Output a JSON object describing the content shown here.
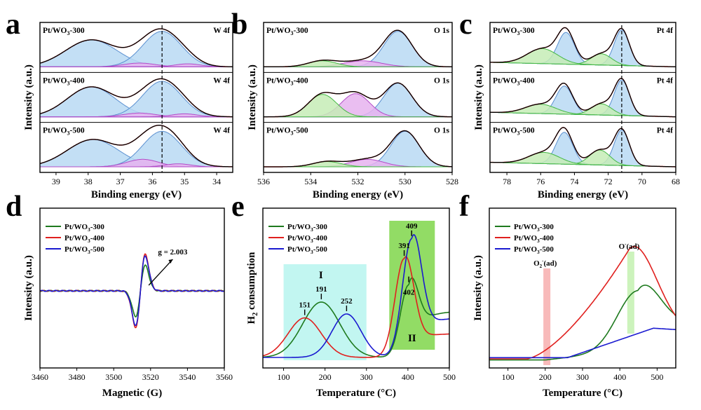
{
  "chart_data": [
    {
      "panel": "a",
      "type": "line",
      "title": "",
      "xlabel": "Binding energy (eV)",
      "ylabel": "Intensity (a.u.)",
      "xlim": [
        39.5,
        33.5
      ],
      "xticks": [
        39,
        38,
        37,
        36,
        35,
        34
      ],
      "dashed_line_at": 35.7,
      "series": [
        {
          "name": "Pt/WO3-300",
          "tag": "W 4f",
          "peaks": [
            [
              37.9,
              0.8,
              0.72
            ],
            [
              35.7,
              0.6,
              0.95
            ],
            [
              36.4,
              0.5,
              0.1
            ],
            [
              34.9,
              0.4,
              0.08
            ]
          ]
        },
        {
          "name": "Pt/WO3-400",
          "tag": "W 4f",
          "peaks": [
            [
              37.9,
              0.75,
              0.8
            ],
            [
              35.7,
              0.6,
              0.95
            ],
            [
              36.4,
              0.5,
              0.1
            ],
            [
              35.0,
              0.4,
              0.08
            ]
          ]
        },
        {
          "name": "Pt/WO3-500",
          "tag": "W 4f",
          "peaks": [
            [
              37.85,
              0.8,
              0.73
            ],
            [
              35.7,
              0.6,
              0.95
            ],
            [
              36.3,
              0.5,
              0.2
            ],
            [
              35.2,
              0.4,
              0.08
            ]
          ]
        }
      ]
    },
    {
      "panel": "b",
      "type": "line",
      "title": "",
      "xlabel": "Binding energy (eV)",
      "ylabel": "Intensity (a.u.)",
      "xlim": [
        536,
        528
      ],
      "xticks": [
        536,
        534,
        532,
        530,
        528
      ],
      "series": [
        {
          "name": "Pt/WO3-300",
          "tag": "O 1s",
          "peaks": [
            [
              530.3,
              0.6,
              0.95
            ],
            [
              531.8,
              0.8,
              0.16
            ],
            [
              533.5,
              0.6,
              0.16
            ]
          ]
        },
        {
          "name": "Pt/WO3-400",
          "tag": "O 1s",
          "peaks": [
            [
              530.3,
              0.6,
              0.9
            ],
            [
              532.1,
              0.6,
              0.62
            ],
            [
              533.5,
              0.6,
              0.6
            ]
          ]
        },
        {
          "name": "Pt/WO3-500",
          "tag": "O 1s",
          "peaks": [
            [
              530.0,
              0.6,
              0.95
            ],
            [
              531.6,
              0.7,
              0.2
            ],
            [
              533.3,
              0.6,
              0.14
            ]
          ]
        }
      ]
    },
    {
      "panel": "c",
      "type": "line",
      "title": "",
      "xlabel": "Binding energy (eV)",
      "ylabel": "Intensity (a.u.)",
      "xlim": [
        79,
        68
      ],
      "xticks": [
        78,
        76,
        74,
        72,
        70,
        68
      ],
      "dashed_line_at": 71.2,
      "series": [
        {
          "name": "Pt/WO3-300",
          "tag": "Pt 4f",
          "peaks": [
            [
              71.2,
              0.45,
              0.95
            ],
            [
              74.5,
              0.5,
              0.85
            ],
            [
              72.4,
              0.6,
              0.3
            ],
            [
              75.9,
              0.9,
              0.4
            ]
          ]
        },
        {
          "name": "Pt/WO3-400",
          "tag": "Pt 4f",
          "peaks": [
            [
              71.2,
              0.45,
              0.95
            ],
            [
              74.6,
              0.5,
              0.75
            ],
            [
              72.4,
              0.6,
              0.3
            ],
            [
              76.0,
              0.9,
              0.25
            ]
          ]
        },
        {
          "name": "Pt/WO3-500",
          "tag": "Pt 4f",
          "peaks": [
            [
              71.2,
              0.45,
              0.95
            ],
            [
              74.6,
              0.5,
              0.85
            ],
            [
              72.5,
              0.6,
              0.4
            ],
            [
              75.8,
              0.9,
              0.3
            ]
          ]
        }
      ]
    },
    {
      "panel": "d",
      "type": "line",
      "title": "",
      "xlabel": "Magnetic (G)",
      "ylabel": "Intensity (a.u.)",
      "xlim": [
        3460,
        3560
      ],
      "xticks": [
        3460,
        3480,
        3500,
        3520,
        3540,
        3560
      ],
      "annotation": "g = 2.003",
      "series": [
        {
          "name": "Pt/WO3-300",
          "color": "#1e7a1e",
          "amplitude": 0.7
        },
        {
          "name": "Pt/WO3-400",
          "color": "#e0201e",
          "amplitude": 1.0
        },
        {
          "name": "Pt/WO3-500",
          "color": "#1a1ad0",
          "amplitude": 0.95
        }
      ]
    },
    {
      "panel": "e",
      "type": "line",
      "title": "",
      "xlabel": "Temperature (°C)",
      "ylabel": "H2 consumption",
      "xlim": [
        50,
        500
      ],
      "xticks": [
        100,
        200,
        300,
        400,
        500
      ],
      "regions": [
        {
          "label": "I",
          "from": 100,
          "to": 300
        },
        {
          "label": "II",
          "from": 355,
          "to": 465
        }
      ],
      "peak_labels": [
        "151",
        "191",
        "252",
        "391",
        "402",
        "409"
      ],
      "series": [
        {
          "name": "Pt/WO3-300",
          "color": "#1e7a1e",
          "peaks": [
            [
              191,
              45,
              0.42
            ],
            [
              402,
              20,
              0.55
            ]
          ]
        },
        {
          "name": "Pt/WO3-400",
          "color": "#e0201e",
          "peaks": [
            [
              151,
              40,
              0.3
            ],
            [
              391,
              22,
              0.75
            ]
          ]
        },
        {
          "name": "Pt/WO3-500",
          "color": "#1a1ad0",
          "peaks": [
            [
              252,
              35,
              0.33
            ],
            [
              409,
              22,
              0.9
            ]
          ]
        }
      ]
    },
    {
      "panel": "f",
      "type": "line",
      "title": "",
      "xlabel": "Temperature (°C)",
      "ylabel": "Intensity (a.u.)",
      "xlim": [
        50,
        550
      ],
      "xticks": [
        100,
        200,
        300,
        400,
        500
      ],
      "regions": [
        {
          "label": "O2-(ad)",
          "at": 200
        },
        {
          "label": "O-(ad)",
          "at": 425
        }
      ],
      "series": [
        {
          "name": "Pt/WO3-300",
          "color": "#1e7a1e",
          "peak": 448
        },
        {
          "name": "Pt/WO3-400",
          "color": "#e0201e",
          "peak": 425
        },
        {
          "name": "Pt/WO3-500",
          "color": "#1a1ad0",
          "peak": 490
        }
      ]
    }
  ],
  "labels": {
    "panel_letters": [
      "a",
      "b",
      "c",
      "d",
      "e",
      "f"
    ],
    "sample_names": [
      "Pt/WO",
      "Pt/WO",
      "Pt/WO"
    ],
    "sample_subscript": "3",
    "sample_suffix": [
      "-300",
      "-400",
      "-500"
    ],
    "tags": {
      "a": "W 4f",
      "b": "O 1s",
      "c": "Pt 4f"
    },
    "xlabel_be": "Binding energy (eV)",
    "ylabel_int": "Intensity (a.u.)",
    "xlabel_d": "Magnetic (G)",
    "xlabel_t": "Temperature (°C)",
    "ylabel_e_main": "H",
    "ylabel_e_sub": "2",
    "ylabel_e_rest": " consumption",
    "g_annot": "g = 2.003",
    "region_I": "I",
    "region_II": "II",
    "f_o2": "O",
    "f_o2_sub": "2",
    "f_o2_sup": "-",
    "f_o2_rest": "(ad)",
    "f_o": "O",
    "f_o_sup": "-",
    "f_o_rest": "(ad)"
  },
  "colors": {
    "green": "#1e7a1e",
    "red": "#e0201e",
    "blue": "#1a1ad0",
    "fill_blue": "#b9d9f3",
    "fill_purple": "#e6b3ef",
    "fill_green": "#c6ecb6",
    "cyan_box": "#b7f4ee",
    "green_box": "#7fd64a",
    "pink_bar": "#f7b3b3",
    "lgreen_bar": "#c7f2b5"
  }
}
